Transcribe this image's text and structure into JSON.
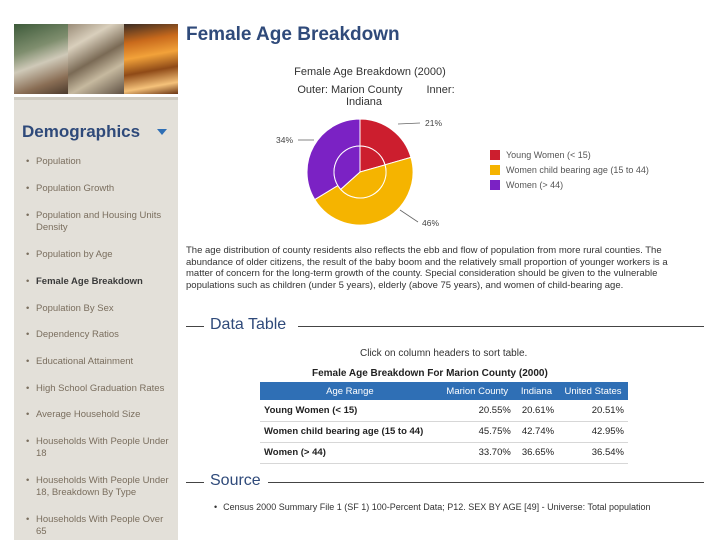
{
  "sidebar": {
    "title": "Demographics",
    "items": [
      {
        "label": "Population",
        "active": false
      },
      {
        "label": "Population Growth",
        "active": false
      },
      {
        "label": "Population and Housing Units Density",
        "active": false
      },
      {
        "label": "Population by Age",
        "active": false
      },
      {
        "label": "Female Age Breakdown",
        "active": true
      },
      {
        "label": "Population By Sex",
        "active": false
      },
      {
        "label": "Dependency Ratios",
        "active": false
      },
      {
        "label": "Educational Attainment",
        "active": false
      },
      {
        "label": "High School Graduation Rates",
        "active": false
      },
      {
        "label": "Average Household Size",
        "active": false
      },
      {
        "label": "Households With People Under 18",
        "active": false
      },
      {
        "label": "Households With People Under 18, Breakdown By Type",
        "active": false
      },
      {
        "label": "Households With People Over 65",
        "active": false
      }
    ]
  },
  "main": {
    "title": "Female Age Breakdown",
    "chart_header": {
      "title": "Female Age Breakdown (2000)",
      "outer": "Outer: Marion County",
      "inner": "Inner: Indiana"
    },
    "paragraph": "The age distribution of county residents also reflects the ebb and flow of population from more rural counties. The abundance of older citizens, the result of the baby boom and the relatively small proportion of younger workers is a matter of concern for the long-term growth of the county. Special consideration should be given to the vulnerable populations such as children (under 5 years), elderly (above 75 years), and women of child-bearing age.",
    "data_table_heading": "Data Table",
    "sort_note": "Click on column headers to sort table.",
    "table_title": "Female Age Breakdown For Marion County (2000)",
    "table": {
      "headers": [
        "Age Range",
        "Marion County",
        "Indiana",
        "United States"
      ],
      "rows": [
        [
          "Young Women (< 15)",
          "20.55%",
          "20.61%",
          "20.51%"
        ],
        [
          "Women child bearing age (15 to 44)",
          "45.75%",
          "42.74%",
          "42.95%"
        ],
        [
          "Women (> 44)",
          "33.70%",
          "36.65%",
          "36.54%"
        ]
      ]
    },
    "source_heading": "Source",
    "source_text": "Census 2000 Summary File 1 (SF 1) 100-Percent Data; P12. SEX BY AGE [49] - Universe: Total population"
  },
  "colors": {
    "young": "#cc1e2e",
    "childbearing": "#f5b400",
    "older": "#7b22c4",
    "heading": "#2f4a7a",
    "table_header": "#2f6fb5"
  },
  "chart_data": {
    "type": "pie",
    "title": "Female Age Breakdown (2000)",
    "categories": [
      "Young Women (< 15)",
      "Women child bearing age (15 to 44)",
      "Women (> 44)"
    ],
    "series": [
      {
        "name": "Outer: Marion County",
        "values": [
          20.55,
          45.75,
          33.7
        ]
      },
      {
        "name": "Inner: Indiana",
        "values": [
          20.61,
          42.74,
          36.65
        ]
      }
    ],
    "slice_labels": [
      "21%",
      "46%",
      "34%"
    ],
    "legend": "right"
  }
}
